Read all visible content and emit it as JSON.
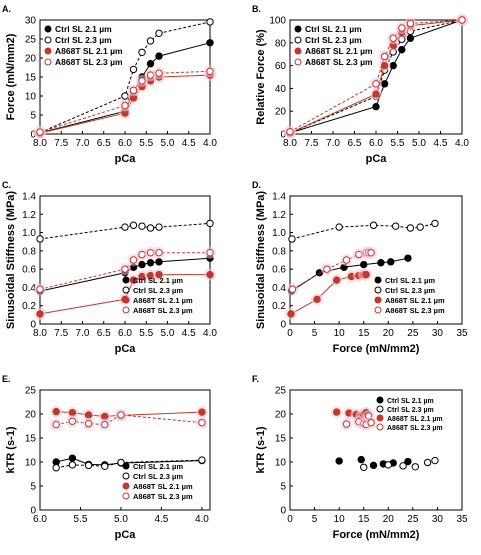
{
  "colors": {
    "ctrl_21": "#000000",
    "ctrl_23": "#000000",
    "a868t_21": "#c0392b",
    "a868t_23": "#c0392b",
    "halo": "#f4c6d8"
  },
  "chart_data": [
    {
      "panel": "A.",
      "type": "line",
      "xlabel": "pCa",
      "ylabel": "Force (mN/mm2)",
      "xlim": [
        8.0,
        4.0
      ],
      "ylim": [
        0,
        30
      ],
      "xticks": [
        "8.0",
        "7.5",
        "7.0",
        "6.5",
        "6.0",
        "5.5",
        "5.0",
        "4.5",
        "4.0"
      ],
      "yticks": [
        "0",
        "5",
        "10",
        "15",
        "20",
        "25",
        "30"
      ],
      "legend": {
        "placement": "top-left",
        "entries": [
          "Ctrl SL 2.1 µm",
          "Ctrl SL 2.3 µm",
          "A868T SL 2.1 µm",
          "A868T SL 2.3 µm"
        ]
      },
      "series": [
        {
          "name": "Ctrl SL 2.1 µm",
          "x": [
            8.0,
            6.0,
            5.8,
            5.6,
            5.4,
            5.2,
            4.0
          ],
          "y": [
            0.3,
            6.0,
            11.0,
            15.0,
            18.5,
            20.5,
            24.0
          ]
        },
        {
          "name": "Ctrl SL 2.3 µm",
          "x": [
            8.0,
            6.0,
            5.8,
            5.6,
            5.4,
            5.2,
            4.0
          ],
          "y": [
            0.4,
            10.0,
            17.0,
            21.5,
            24.5,
            26.5,
            29.5
          ]
        },
        {
          "name": "A868T SL 2.1 µm",
          "x": [
            8.0,
            6.0,
            5.8,
            5.6,
            5.4,
            5.2,
            4.0
          ],
          "y": [
            0.2,
            5.5,
            9.5,
            12.5,
            14.0,
            15.0,
            15.5
          ]
        },
        {
          "name": "A868T SL 2.3 µm",
          "x": [
            8.0,
            6.0,
            5.8,
            5.6,
            5.4,
            5.2,
            4.0
          ],
          "y": [
            0.5,
            7.5,
            11.5,
            14.0,
            15.5,
            16.0,
            16.5
          ]
        }
      ]
    },
    {
      "panel": "B.",
      "type": "line",
      "xlabel": "pCa",
      "ylabel": "Relative Force (%)",
      "xlim": [
        8.0,
        4.0
      ],
      "ylim": [
        0,
        100
      ],
      "xticks": [
        "8.0",
        "7.5",
        "7.0",
        "6.5",
        "6.0",
        "5.5",
        "5.0",
        "4.5",
        "4.0"
      ],
      "yticks": [
        "0",
        "20",
        "40",
        "60",
        "80",
        "100"
      ],
      "legend": {
        "placement": "top-left",
        "entries": [
          "Ctrl SL 2.1 µm",
          "Ctrl SL 2.3 µm",
          "A868T SL 2.1 µm",
          "A868T SL 2.3 µm"
        ]
      },
      "series": [
        {
          "name": "Ctrl SL 2.1 µm",
          "x": [
            8.0,
            6.0,
            5.8,
            5.6,
            5.4,
            5.2,
            4.0
          ],
          "y": [
            1,
            24,
            44,
            60,
            74,
            84,
            100
          ]
        },
        {
          "name": "Ctrl SL 2.3 µm",
          "x": [
            8.0,
            6.0,
            5.8,
            5.6,
            5.4,
            5.2,
            4.0
          ],
          "y": [
            1,
            33,
            56,
            72,
            83,
            90,
            100
          ]
        },
        {
          "name": "A868T SL 2.1 µm",
          "x": [
            8.0,
            6.0,
            5.8,
            5.6,
            5.4,
            5.2,
            4.0
          ],
          "y": [
            1,
            35,
            60,
            78,
            89,
            95,
            100
          ]
        },
        {
          "name": "A868T SL 2.3 µm",
          "x": [
            8.0,
            6.0,
            5.8,
            5.6,
            5.4,
            5.2,
            4.0
          ],
          "y": [
            2,
            44,
            68,
            84,
            93,
            97,
            100
          ]
        }
      ]
    },
    {
      "panel": "C.",
      "type": "line",
      "xlabel": "pCa",
      "ylabel": "Sinusoidal Stiffness (MPa)",
      "xlim": [
        8.0,
        4.0
      ],
      "ylim": [
        0,
        1.4
      ],
      "xticks": [
        "8.0",
        "7.5",
        "7.0",
        "6.5",
        "6.0",
        "5.5",
        "5.0",
        "4.5",
        "4.0"
      ],
      "yticks": [
        "0",
        "0.2",
        "0.4",
        "0.6",
        "0.8",
        "1.0",
        "1.2",
        "1.4"
      ],
      "legend": {
        "placement": "bottom-right",
        "entries": [
          "Ctrl SL 2.1 µm",
          "Ctrl SL 2.3 µm",
          "A868T SL 2.1 µm",
          "A868T SL 2.3 µm"
        ]
      },
      "series": [
        {
          "name": "Ctrl SL 2.1 µm",
          "x": [
            8.0,
            6.0,
            5.8,
            5.6,
            5.4,
            5.2,
            4.0
          ],
          "y": [
            0.36,
            0.56,
            0.62,
            0.65,
            0.67,
            0.68,
            0.72
          ]
        },
        {
          "name": "Ctrl SL 2.3 µm",
          "x": [
            8.0,
            6.0,
            5.8,
            5.6,
            5.4,
            5.2,
            4.0
          ],
          "y": [
            0.93,
            1.06,
            1.08,
            1.07,
            1.05,
            1.06,
            1.1
          ]
        },
        {
          "name": "A868T SL 2.1 µm",
          "x": [
            8.0,
            6.0,
            5.8,
            5.6,
            5.4,
            5.2,
            4.0
          ],
          "y": [
            0.11,
            0.27,
            0.48,
            0.52,
            0.53,
            0.54,
            0.54
          ]
        },
        {
          "name": "A868T SL 2.3 µm",
          "x": [
            8.0,
            6.0,
            5.8,
            5.6,
            5.4,
            5.2,
            4.0
          ],
          "y": [
            0.38,
            0.6,
            0.7,
            0.76,
            0.78,
            0.78,
            0.78
          ]
        }
      ]
    },
    {
      "panel": "D.",
      "type": "line",
      "xlabel": "Force (mN/mm2)",
      "ylabel": "Sinusoidal Stiffness (MPa)",
      "xlim": [
        0,
        35
      ],
      "ylim": [
        0,
        1.4
      ],
      "xticks": [
        "0",
        "5",
        "10",
        "15",
        "20",
        "25",
        "30",
        "35"
      ],
      "yticks": [
        "0",
        "0.2",
        "0.4",
        "0.6",
        "0.8",
        "1.0",
        "1.2",
        "1.4"
      ],
      "legend": {
        "placement": "bottom-right",
        "entries": [
          "Ctrl SL 2.1 µm",
          "Ctrl SL 2.3 µm",
          "A868T SL 2.1 µm",
          "A868T SL 2.3 µm"
        ]
      },
      "series": [
        {
          "name": "Ctrl SL 2.1 µm",
          "x": [
            0.3,
            6.0,
            11.0,
            15.0,
            18.5,
            20.5,
            24.0
          ],
          "y": [
            0.36,
            0.56,
            0.62,
            0.65,
            0.67,
            0.68,
            0.72
          ]
        },
        {
          "name": "Ctrl SL 2.3 µm",
          "x": [
            0.4,
            10.0,
            17.0,
            21.5,
            24.5,
            26.5,
            29.5
          ],
          "y": [
            0.93,
            1.06,
            1.08,
            1.07,
            1.05,
            1.06,
            1.1
          ]
        },
        {
          "name": "A868T SL 2.1 µm",
          "x": [
            0.2,
            5.5,
            9.5,
            12.5,
            14.0,
            15.0,
            15.5
          ],
          "y": [
            0.11,
            0.27,
            0.48,
            0.52,
            0.53,
            0.54,
            0.54
          ]
        },
        {
          "name": "A868T SL 2.3 µm",
          "x": [
            0.5,
            7.5,
            11.5,
            14.0,
            15.5,
            16.0,
            16.5
          ],
          "y": [
            0.38,
            0.6,
            0.7,
            0.76,
            0.78,
            0.78,
            0.78
          ]
        }
      ]
    },
    {
      "panel": "E.",
      "type": "line",
      "xlabel": "pCa",
      "ylabel": "kTR (s-1)",
      "xlim": [
        6.0,
        3.9
      ],
      "ylim": [
        0,
        25
      ],
      "xticks": [
        "6.0",
        "5.5",
        "5.0",
        "4.5",
        "4.0"
      ],
      "yticks": [
        "0",
        "5",
        "10",
        "15",
        "20",
        "25"
      ],
      "legend": {
        "placement": "bottom-right",
        "entries": [
          "Ctrl SL 2.1 µm",
          "Ctrl SL 2.3 µm",
          "A868T SL 2.1 µm",
          "A868T SL 2.3 µm"
        ]
      },
      "series": [
        {
          "name": "Ctrl SL 2.1 µm",
          "x": [
            5.8,
            5.6,
            5.4,
            5.2,
            5.0,
            4.0
          ],
          "y": [
            10.0,
            10.8,
            9.5,
            9.4,
            9.8,
            10.3
          ]
        },
        {
          "name": "Ctrl SL 2.3 µm",
          "x": [
            5.8,
            5.6,
            5.4,
            5.2,
            5.0,
            4.0
          ],
          "y": [
            8.8,
            9.4,
            9.3,
            9.1,
            9.9,
            10.4
          ]
        },
        {
          "name": "A868T SL 2.1 µm",
          "x": [
            5.8,
            5.6,
            5.4,
            5.2,
            5.0,
            4.0
          ],
          "y": [
            20.5,
            20.3,
            19.8,
            19.5,
            19.7,
            20.4
          ]
        },
        {
          "name": "A868T SL 2.3 µm",
          "x": [
            5.8,
            5.6,
            5.4,
            5.2,
            5.0,
            4.0
          ],
          "y": [
            17.8,
            18.5,
            18.0,
            17.8,
            19.8,
            18.2
          ]
        }
      ]
    },
    {
      "panel": "F.",
      "type": "scatter",
      "xlabel": "Force (mN/mm2)",
      "ylabel": "kTR (s-1)",
      "xlim": [
        0,
        35
      ],
      "ylim": [
        0,
        25
      ],
      "xticks": [
        "0",
        "5",
        "10",
        "15",
        "20",
        "25",
        "30",
        "35"
      ],
      "yticks": [
        "0",
        "5",
        "10",
        "15",
        "20",
        "25"
      ],
      "legend": {
        "placement": "top-right",
        "entries": [
          "Ctrl SL 2.1 µm",
          "Ctrl SL 2.3 µm",
          "A868T SL 2.1 µm",
          "A868T SL 2.3 µm"
        ]
      },
      "series": [
        {
          "name": "Ctrl SL 2.1 µm",
          "x": [
            10.0,
            14.5,
            17.0,
            19.0,
            21.0,
            24.0
          ],
          "y": [
            10.2,
            10.5,
            9.3,
            9.6,
            9.8,
            10.1
          ]
        },
        {
          "name": "Ctrl SL 2.3 µm",
          "x": [
            15.0,
            20.0,
            23.0,
            25.5,
            28.0,
            29.5
          ],
          "y": [
            8.9,
            9.4,
            9.2,
            9.0,
            9.9,
            10.3
          ]
        },
        {
          "name": "A868T SL 2.1 µm",
          "x": [
            9.5,
            12.0,
            13.5,
            14.5,
            15.0,
            15.5
          ],
          "y": [
            20.4,
            20.2,
            19.9,
            19.6,
            19.8,
            20.3
          ]
        },
        {
          "name": "A868T SL 2.3 µm",
          "x": [
            11.5,
            14.0,
            15.0,
            15.5,
            16.0,
            16.5
          ],
          "y": [
            17.9,
            18.4,
            18.0,
            17.8,
            19.6,
            18.2
          ]
        }
      ]
    }
  ]
}
